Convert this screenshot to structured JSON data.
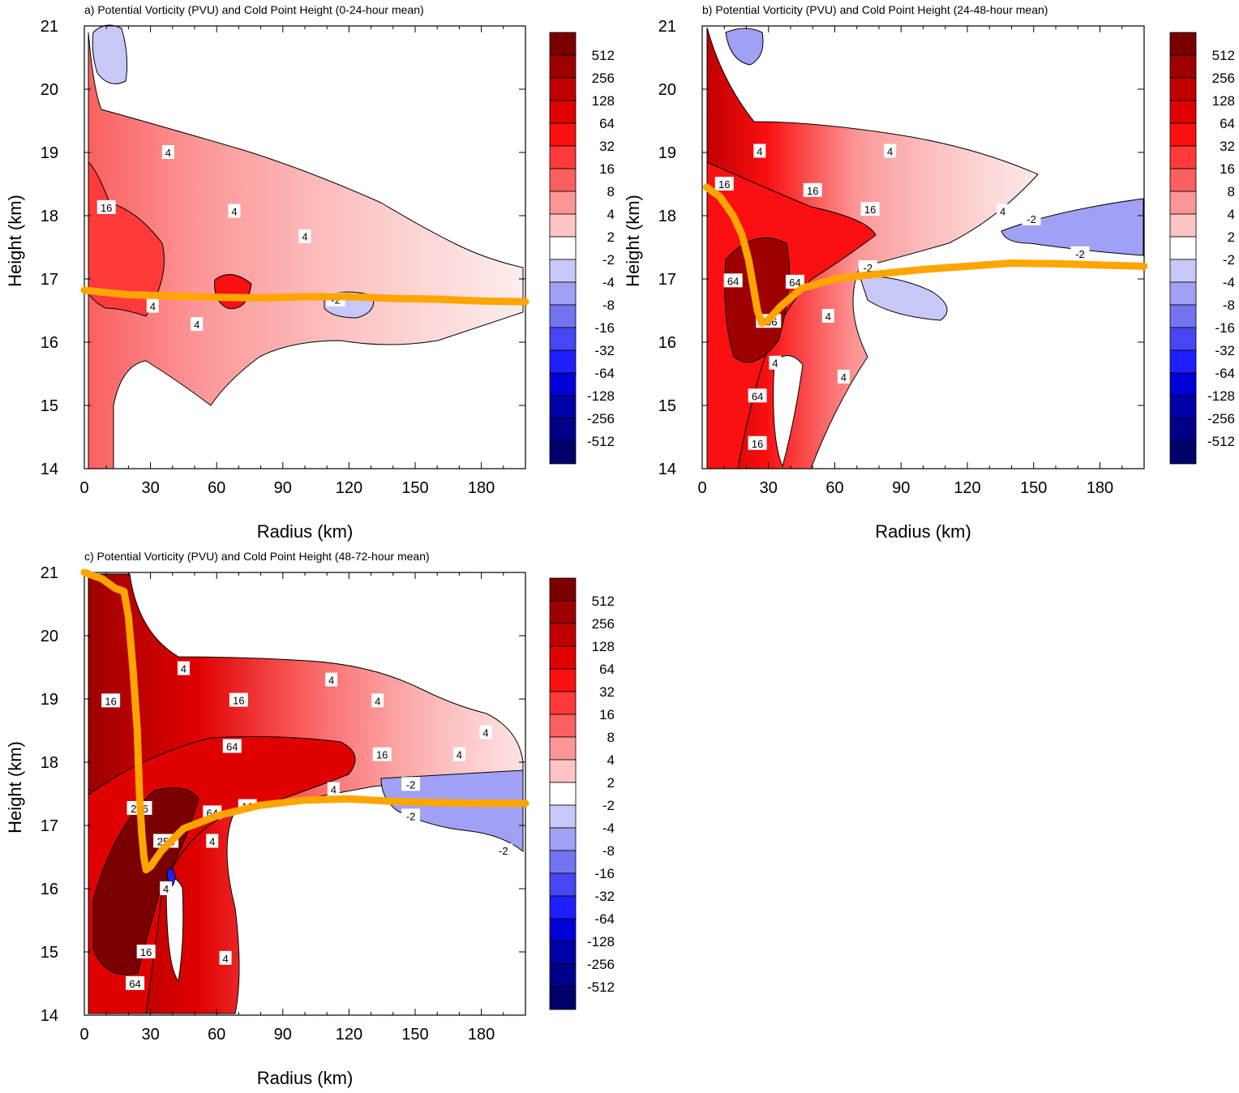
{
  "colorbar": {
    "levels": [
      "512",
      "256",
      "128",
      "64",
      "32",
      "16",
      "8",
      "4",
      "2",
      "-2",
      "-4",
      "-8",
      "-16",
      "-32",
      "-64",
      "-128",
      "-256",
      "-512"
    ],
    "colors": [
      "#7a0000",
      "#9e0000",
      "#c00000",
      "#e00000",
      "#fa1010",
      "#ff3a3a",
      "#fa6060",
      "#fc9696",
      "#fcc4c4",
      "#ffffff",
      "#c8c8f8",
      "#a0a0f4",
      "#7474f0",
      "#4646f2",
      "#1e1eff",
      "#0000d8",
      "#0000a8",
      "#000088",
      "#00006a"
    ]
  },
  "chart_data": [
    {
      "type": "heatmap",
      "panel": "a",
      "title": "a) Potential Vorticity (PVU) and Cold Point Height  (0-24-hour mean)",
      "xlabel": "Radius (km)",
      "ylabel": "Height (km)",
      "xlim": [
        0,
        200
      ],
      "ylim": [
        14,
        21
      ],
      "xticks": [
        "0",
        "30",
        "60",
        "90",
        "120",
        "150",
        "180"
      ],
      "yticks": [
        "14",
        "15",
        "16",
        "17",
        "18",
        "19",
        "20",
        "21"
      ],
      "contour_labels": [
        {
          "text": "16",
          "x": 10,
          "y": 18.13
        },
        {
          "text": "4",
          "x": 38,
          "y": 19.0
        },
        {
          "text": "4",
          "x": 68,
          "y": 18.07
        },
        {
          "text": "4",
          "x": 100,
          "y": 17.67
        },
        {
          "text": "4",
          "x": 31,
          "y": 16.57
        },
        {
          "text": "4",
          "x": 51,
          "y": 16.28
        },
        {
          "text": "-2",
          "x": 114,
          "y": 16.67
        }
      ],
      "cold_point_height": {
        "color": "#ffa500",
        "x": [
          0,
          20,
          40,
          60,
          80,
          100,
          120,
          140,
          160,
          180,
          200
        ],
        "y": [
          16.82,
          16.75,
          16.73,
          16.71,
          16.7,
          16.72,
          16.72,
          16.69,
          16.68,
          16.65,
          16.64
        ]
      }
    },
    {
      "type": "heatmap",
      "panel": "b",
      "title": "b) Potential Vorticity (PVU) and Cold Point Height  (24-48-hour mean)",
      "xlabel": "Radius (km)",
      "ylabel": "Height (km)",
      "xlim": [
        0,
        200
      ],
      "ylim": [
        14,
        21
      ],
      "xticks": [
        "0",
        "30",
        "60",
        "90",
        "120",
        "150",
        "180"
      ],
      "yticks": [
        "14",
        "15",
        "16",
        "17",
        "18",
        "19",
        "20",
        "21"
      ],
      "contour_labels": [
        {
          "text": "16",
          "x": 10,
          "y": 18.5
        },
        {
          "text": "4",
          "x": 26,
          "y": 19.02
        },
        {
          "text": "4",
          "x": 85,
          "y": 19.02
        },
        {
          "text": "16",
          "x": 50,
          "y": 18.4
        },
        {
          "text": "16",
          "x": 76,
          "y": 18.1
        },
        {
          "text": "4",
          "x": 136,
          "y": 18.07
        },
        {
          "text": "-2",
          "x": 149,
          "y": 17.95
        },
        {
          "text": "-2",
          "x": 171,
          "y": 17.4
        },
        {
          "text": "-2",
          "x": 75,
          "y": 17.18
        },
        {
          "text": "64",
          "x": 14,
          "y": 16.97
        },
        {
          "text": "64",
          "x": 42,
          "y": 16.95
        },
        {
          "text": "4",
          "x": 57,
          "y": 16.41
        },
        {
          "text": "256",
          "x": 30,
          "y": 16.33
        },
        {
          "text": "4",
          "x": 33,
          "y": 15.67
        },
        {
          "text": "4",
          "x": 64,
          "y": 15.45
        },
        {
          "text": "64",
          "x": 25,
          "y": 15.15
        },
        {
          "text": "16",
          "x": 25,
          "y": 14.4
        }
      ],
      "cold_point_height": {
        "color": "#ffa500",
        "x": [
          2,
          8,
          14,
          18,
          21,
          23,
          25,
          27,
          30,
          35,
          45,
          60,
          80,
          100,
          120,
          140,
          160,
          180,
          200
        ],
        "y": [
          18.45,
          18.3,
          18.0,
          17.7,
          17.3,
          16.9,
          16.5,
          16.3,
          16.35,
          16.55,
          16.85,
          17.0,
          17.08,
          17.15,
          17.2,
          17.25,
          17.24,
          17.22,
          17.2
        ]
      }
    },
    {
      "type": "heatmap",
      "panel": "c",
      "title": "c) Potential Vorticity (PVU) and Cold Point Height  (48-72-hour mean)",
      "xlabel": "Radius (km)",
      "ylabel": "Height (km)",
      "xlim": [
        0,
        200
      ],
      "ylim": [
        14,
        21
      ],
      "xticks": [
        "0",
        "30",
        "60",
        "90",
        "120",
        "150",
        "180"
      ],
      "yticks": [
        "14",
        "15",
        "16",
        "17",
        "18",
        "19",
        "20",
        "21"
      ],
      "contour_labels": [
        {
          "text": "4",
          "x": 45,
          "y": 19.48
        },
        {
          "text": "4",
          "x": 112,
          "y": 19.3
        },
        {
          "text": "16",
          "x": 12,
          "y": 18.97
        },
        {
          "text": "16",
          "x": 70,
          "y": 18.98
        },
        {
          "text": "4",
          "x": 133,
          "y": 18.97
        },
        {
          "text": "4",
          "x": 182,
          "y": 18.47
        },
        {
          "text": "64",
          "x": 67,
          "y": 18.25
        },
        {
          "text": "16",
          "x": 135,
          "y": 18.12
        },
        {
          "text": "4",
          "x": 170,
          "y": 18.12
        },
        {
          "text": "4",
          "x": 113,
          "y": 17.57
        },
        {
          "text": "-2",
          "x": 148,
          "y": 17.65
        },
        {
          "text": "256",
          "x": 25,
          "y": 17.27
        },
        {
          "text": "64",
          "x": 58,
          "y": 17.2
        },
        {
          "text": "16",
          "x": 74,
          "y": 17.3
        },
        {
          "text": "-2",
          "x": 148,
          "y": 17.15
        },
        {
          "text": "256",
          "x": 37,
          "y": 16.75
        },
        {
          "text": "4",
          "x": 58,
          "y": 16.75
        },
        {
          "text": "-2",
          "x": 190,
          "y": 16.6
        },
        {
          "text": "4",
          "x": 37,
          "y": 16.0
        },
        {
          "text": "16",
          "x": 28,
          "y": 15.0
        },
        {
          "text": "4",
          "x": 64,
          "y": 14.9
        },
        {
          "text": "64",
          "x": 23,
          "y": 14.5
        }
      ],
      "cold_point_height": {
        "color": "#ffa500",
        "x": [
          0,
          8,
          14,
          18,
          20,
          22,
          24,
          25,
          26,
          27,
          28,
          30,
          35,
          45,
          60,
          80,
          100,
          120,
          140,
          160,
          180,
          200
        ],
        "y": [
          21.0,
          20.9,
          20.75,
          20.7,
          20.3,
          19.5,
          18.5,
          17.5,
          16.9,
          16.5,
          16.3,
          16.35,
          16.6,
          16.95,
          17.15,
          17.32,
          17.4,
          17.42,
          17.38,
          17.36,
          17.35,
          17.35
        ]
      }
    }
  ]
}
